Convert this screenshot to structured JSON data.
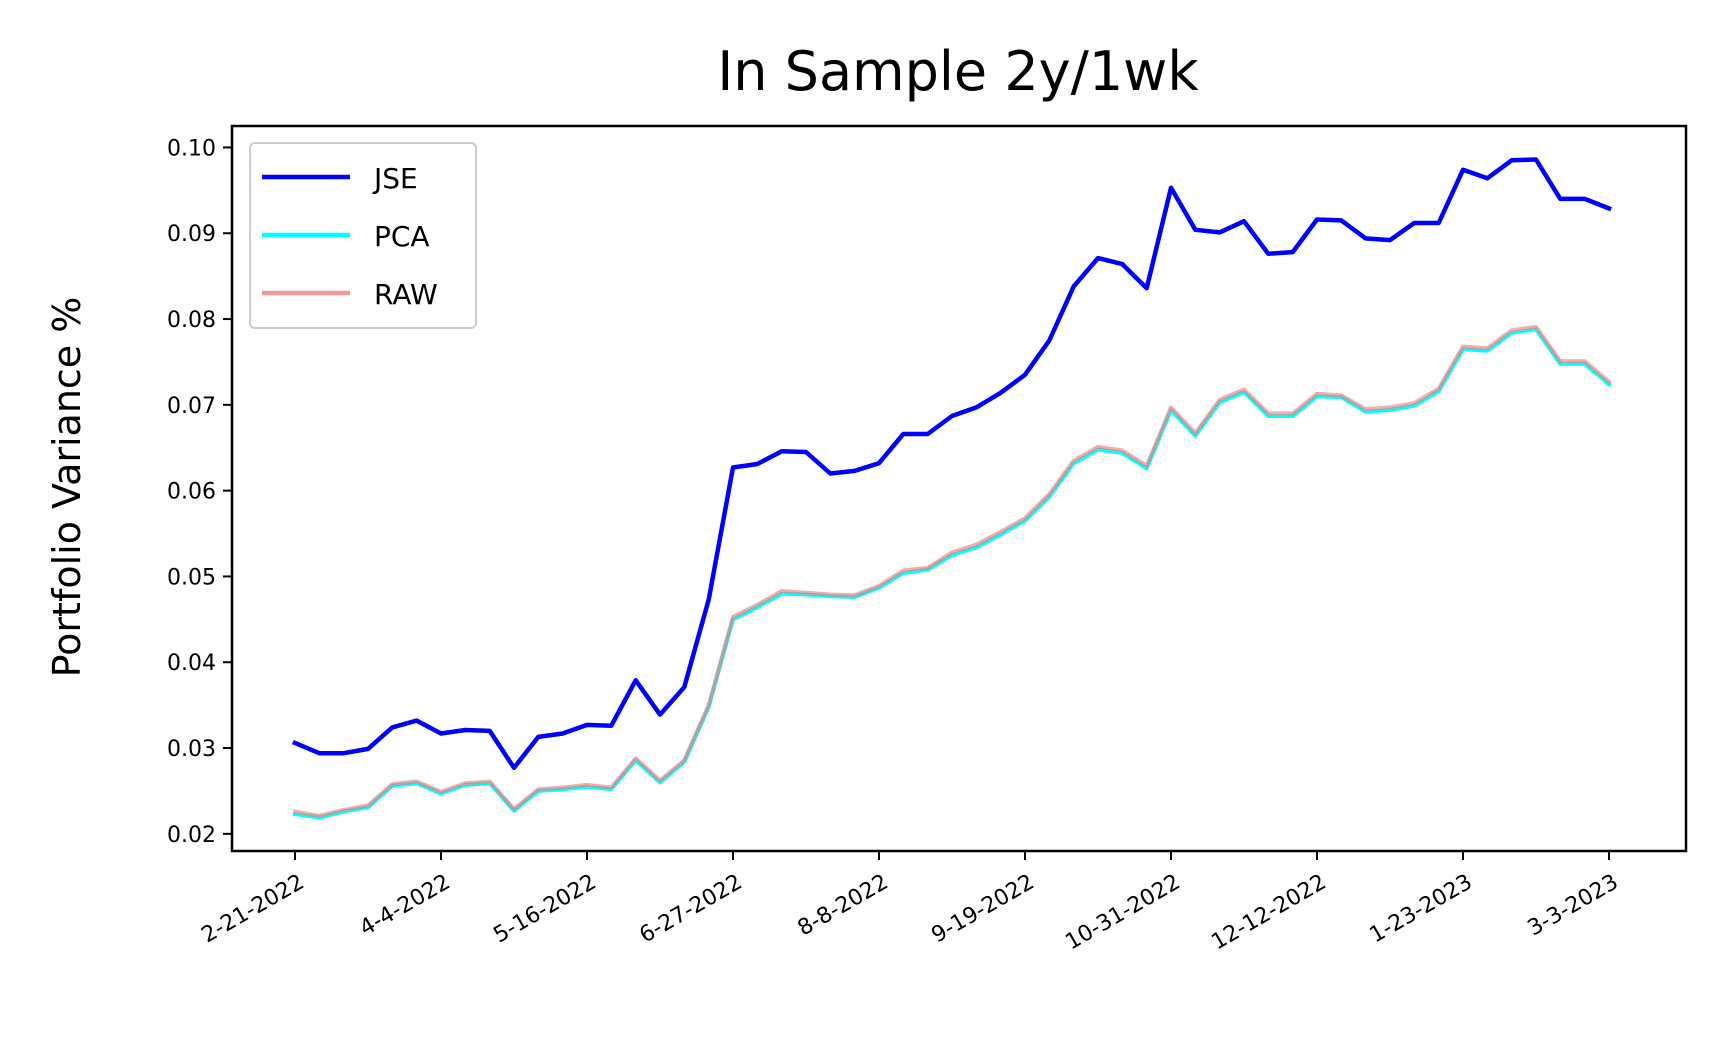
{
  "chart_data": {
    "type": "line",
    "title": "In Sample 2y/1wk",
    "xlabel": "",
    "ylabel": "Portfolio Variance %",
    "ylim": [
      0.018,
      0.1025
    ],
    "yticks": [
      "0.02",
      "0.03",
      "0.04",
      "0.05",
      "0.06",
      "0.07",
      "0.08",
      "0.09",
      "0.10"
    ],
    "xtick_labels": [
      "2-21-2022",
      "4-4-2022",
      "5-16-2022",
      "6-27-2022",
      "8-8-2022",
      "9-19-2022",
      "10-31-2022",
      "12-12-2022",
      "1-23-2023",
      "3-3-2023"
    ],
    "xtick_index": [
      0,
      6,
      12,
      18,
      24,
      30,
      36,
      42,
      48,
      54
    ],
    "n_points": 55,
    "grid": false,
    "legend_position": "upper-left",
    "series": [
      {
        "name": "JSE",
        "color": "#0000ff",
        "values": [
          0.0306,
          0.0294,
          0.0294,
          0.0299,
          0.0324,
          0.0332,
          0.0317,
          0.0321,
          0.032,
          0.0277,
          0.0313,
          0.0317,
          0.0327,
          0.0326,
          0.0379,
          0.0339,
          0.0371,
          0.0473,
          0.0627,
          0.0631,
          0.0646,
          0.0645,
          0.062,
          0.0623,
          0.0632,
          0.0666,
          0.0666,
          0.0687,
          0.0697,
          0.0714,
          0.0735,
          0.0775,
          0.0838,
          0.0871,
          0.0864,
          0.0836,
          0.0953,
          0.0904,
          0.0901,
          0.0914,
          0.0876,
          0.0878,
          0.0916,
          0.0915,
          0.0894,
          0.0892,
          0.0912,
          0.0912,
          0.0974,
          0.0964,
          0.0985,
          0.0986,
          0.094,
          0.094,
          0.0929
        ]
      },
      {
        "name": "PCA",
        "color": "#00ffff",
        "values": [
          0.0223,
          0.0219,
          0.0226,
          0.0231,
          0.0256,
          0.0259,
          0.0247,
          0.0257,
          0.0259,
          0.0227,
          0.025,
          0.0252,
          0.0255,
          0.0252,
          0.0286,
          0.026,
          0.0284,
          0.0348,
          0.045,
          0.0464,
          0.048,
          0.0479,
          0.0477,
          0.0476,
          0.0487,
          0.0504,
          0.0508,
          0.0525,
          0.0534,
          0.0549,
          0.0565,
          0.0593,
          0.0632,
          0.0648,
          0.0644,
          0.0626,
          0.0694,
          0.0664,
          0.0703,
          0.0715,
          0.0687,
          0.0687,
          0.071,
          0.0709,
          0.0692,
          0.0694,
          0.0699,
          0.0716,
          0.0765,
          0.0763,
          0.0784,
          0.0788,
          0.0748,
          0.0748,
          0.0724
        ]
      },
      {
        "name": "RAW",
        "color": "#f08080",
        "values": [
          0.0226,
          0.0221,
          0.0228,
          0.0233,
          0.0258,
          0.0261,
          0.0249,
          0.0259,
          0.0261,
          0.0229,
          0.0252,
          0.0254,
          0.0257,
          0.0254,
          0.0288,
          0.0262,
          0.0286,
          0.035,
          0.0453,
          0.0467,
          0.0483,
          0.0481,
          0.0479,
          0.0478,
          0.0489,
          0.0507,
          0.051,
          0.0528,
          0.0537,
          0.0552,
          0.0568,
          0.0596,
          0.0635,
          0.0651,
          0.0647,
          0.0629,
          0.0697,
          0.0667,
          0.0706,
          0.0718,
          0.069,
          0.069,
          0.0713,
          0.0711,
          0.0695,
          0.0697,
          0.0702,
          0.0719,
          0.0768,
          0.0766,
          0.0787,
          0.0791,
          0.0751,
          0.0751,
          0.0727
        ]
      }
    ]
  }
}
